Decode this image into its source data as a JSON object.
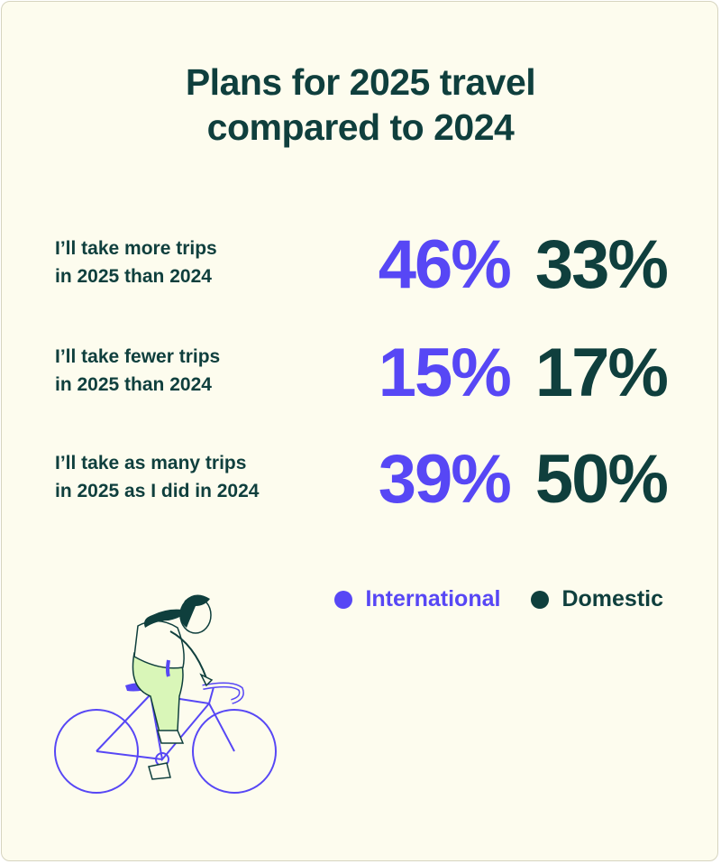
{
  "chart_data": {
    "type": "table",
    "title_lines": [
      "Plans for 2025 travel",
      "compared to 2024"
    ],
    "rows": [
      {
        "label_lines": [
          "I’ll take more trips",
          "in 2025 than 2024"
        ],
        "international": "46%",
        "domestic": "33%"
      },
      {
        "label_lines": [
          "I’ll take fewer trips",
          "in 2025 than 2024"
        ],
        "international": "15%",
        "domestic": "17%"
      },
      {
        "label_lines": [
          "I’ll take as many trips",
          "in 2025 as I did in 2024"
        ],
        "international": "39%",
        "domestic": "50%"
      }
    ],
    "series": [
      {
        "name": "International",
        "values": [
          46,
          15,
          39
        ],
        "color": "#5747f5"
      },
      {
        "name": "Domestic",
        "values": [
          33,
          17,
          50
        ],
        "color": "#0f3f3d"
      }
    ],
    "legend_position": "bottom-right"
  },
  "colors": {
    "background": "#fdfcee",
    "text": "#0f3f3d",
    "international": "#5747f5",
    "domestic": "#0f3f3d",
    "accent_green": "#d9f6b8"
  },
  "illustration": {
    "icon": "woman-riding-bicycle-icon"
  }
}
